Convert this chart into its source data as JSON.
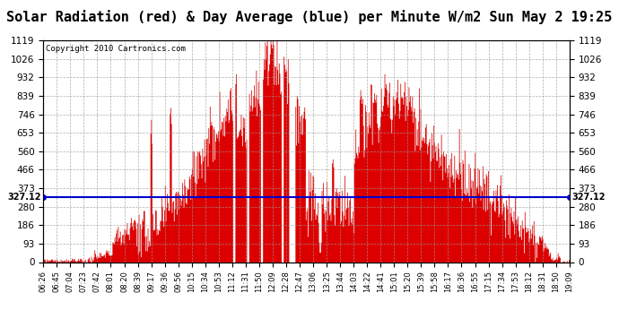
{
  "title": "Solar Radiation (red) & Day Average (blue) per Minute W/m2 Sun May 2 19:25",
  "copyright": "Copyright 2010 Cartronics.com",
  "day_average": 327.12,
  "ylim": [
    0.0,
    1119.0
  ],
  "yticks": [
    0.0,
    93.2,
    186.5,
    279.8,
    373.0,
    466.2,
    559.5,
    652.8,
    746.0,
    839.2,
    932.5,
    1025.8,
    1119.0
  ],
  "bar_color": "#dd0000",
  "avg_line_color": "#0000cc",
  "background_color": "#ffffff",
  "grid_color": "#999999",
  "title_fontsize": 11,
  "avg_label": "327.12",
  "xtick_labels": [
    "06:26",
    "06:45",
    "07:04",
    "07:23",
    "07:42",
    "08:01",
    "08:20",
    "08:39",
    "09:17",
    "09:36",
    "09:56",
    "10:15",
    "10:34",
    "10:53",
    "11:12",
    "11:31",
    "11:50",
    "12:09",
    "12:28",
    "12:47",
    "13:06",
    "13:25",
    "13:44",
    "14:03",
    "14:22",
    "14:41",
    "15:01",
    "15:20",
    "15:39",
    "15:58",
    "16:17",
    "16:36",
    "16:55",
    "17:15",
    "17:34",
    "17:53",
    "18:12",
    "18:31",
    "18:50",
    "19:09"
  ]
}
